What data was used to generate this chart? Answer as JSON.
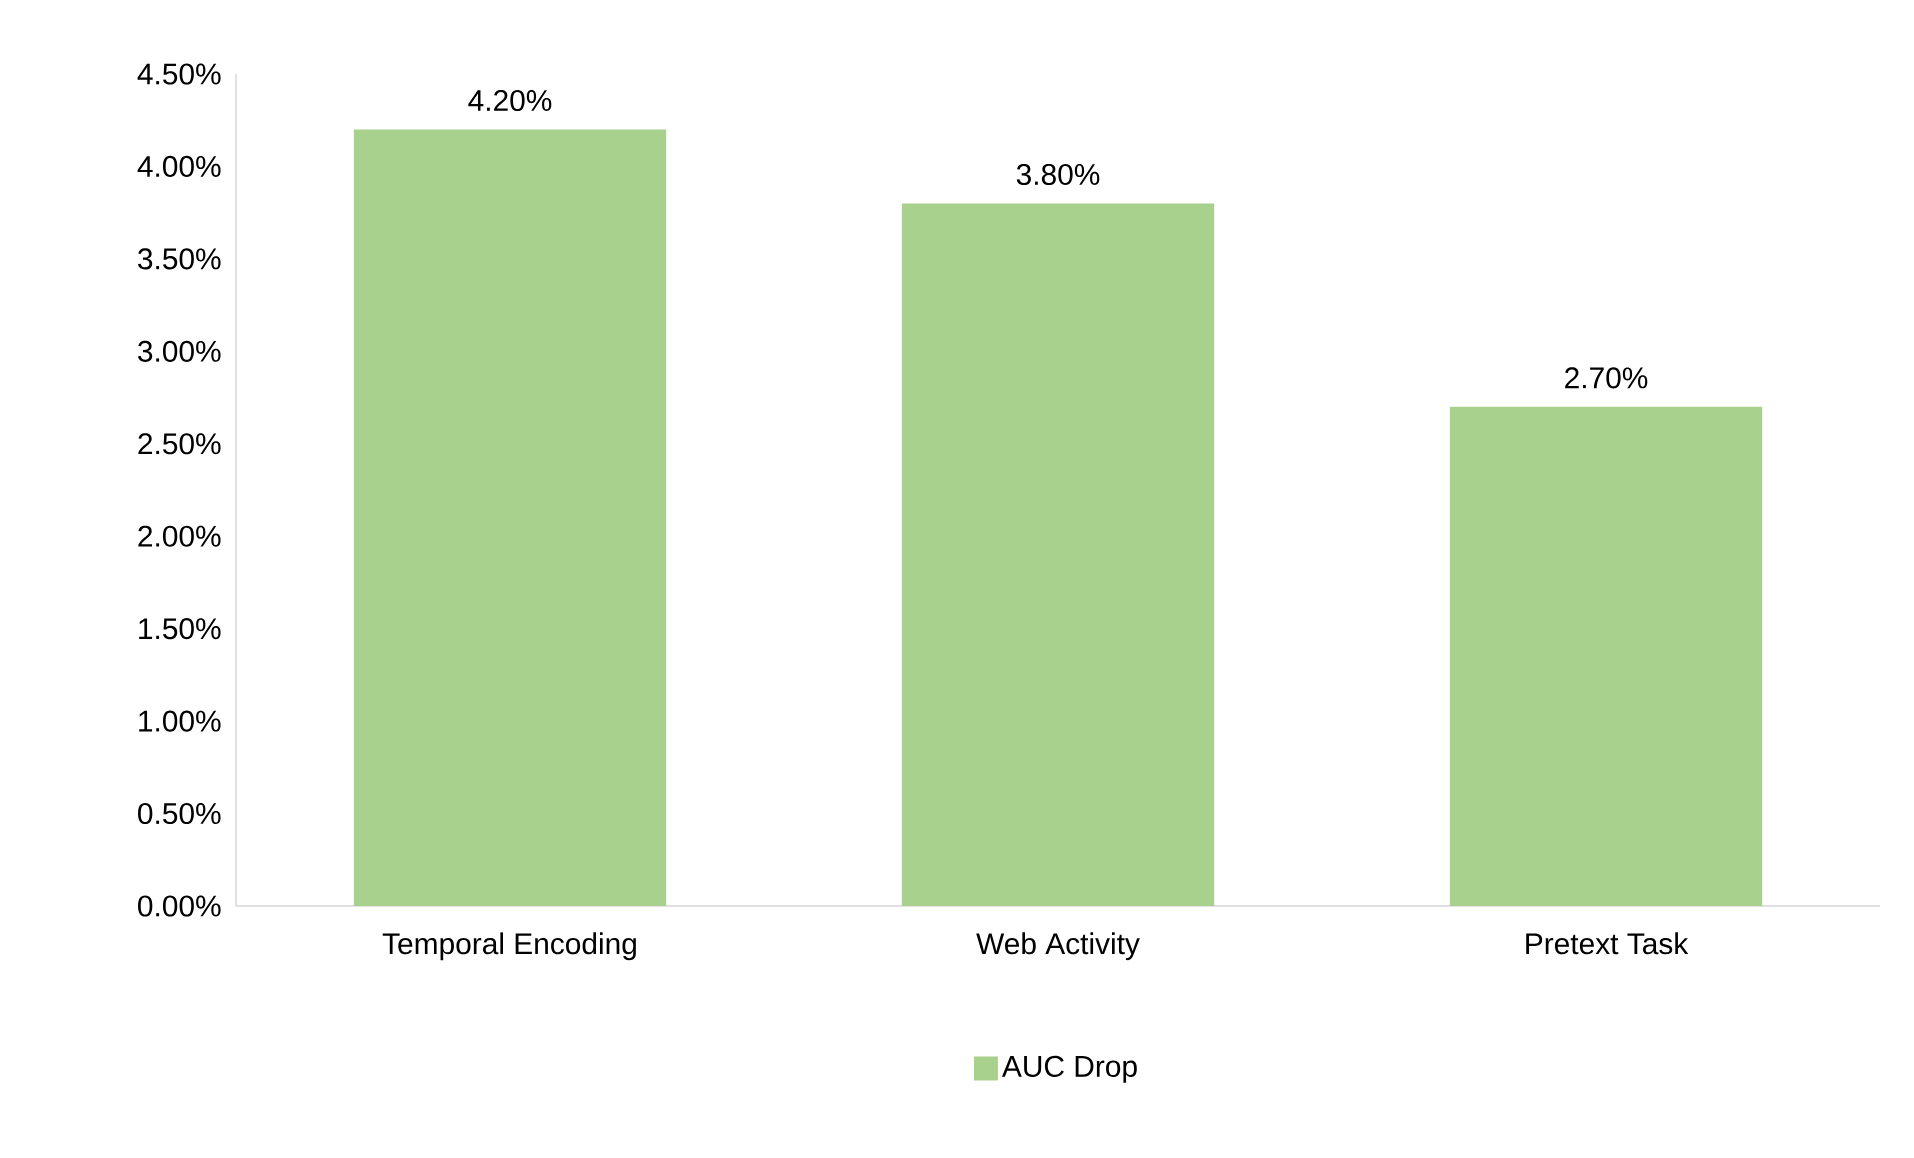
{
  "chart_data": {
    "type": "bar",
    "categories": [
      "Temporal Encoding",
      "Web Activity",
      "Pretext Task"
    ],
    "series": [
      {
        "name": "AUC Drop",
        "color": "#a9d18e",
        "values": [
          4.2,
          3.8,
          2.7
        ],
        "value_labels": [
          "4.20%",
          "3.80%",
          "2.70%"
        ]
      }
    ],
    "ylim": [
      0,
      4.5
    ],
    "yticks": [
      {
        "value": 0,
        "label": "0.00%"
      },
      {
        "value": 0.5,
        "label": "0.50%"
      },
      {
        "value": 1,
        "label": "1.00%"
      },
      {
        "value": 1.5,
        "label": "1.50%"
      },
      {
        "value": 2,
        "label": "2.00%"
      },
      {
        "value": 2.5,
        "label": "2.50%"
      },
      {
        "value": 3,
        "label": "3.00%"
      },
      {
        "value": 3.5,
        "label": "3.50%"
      },
      {
        "value": 4,
        "label": "4.00%"
      },
      {
        "value": 4.5,
        "label": "4.50%"
      }
    ],
    "grid": false,
    "legend": "bottom"
  }
}
